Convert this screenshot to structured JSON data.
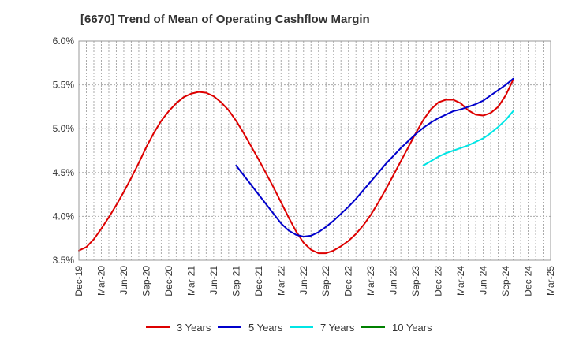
{
  "chart_data": {
    "type": "line",
    "title": "[6670]  Trend of Mean of Operating Cashflow Margin",
    "xlabel": "",
    "ylabel": "",
    "ylim": [
      3.5,
      6.0
    ],
    "y_ticks": [
      3.5,
      4.0,
      4.5,
      5.0,
      5.5,
      6.0
    ],
    "y_tick_labels": [
      "3.5%",
      "4.0%",
      "4.5%",
      "5.0%",
      "5.5%",
      "6.0%"
    ],
    "x_tick_labels": [
      "Dec-19",
      "Mar-20",
      "Jun-20",
      "Sep-20",
      "Dec-20",
      "Mar-21",
      "Jun-21",
      "Sep-21",
      "Dec-21",
      "Mar-22",
      "Jun-22",
      "Sep-22",
      "Dec-22",
      "Mar-23",
      "Jun-23",
      "Sep-23",
      "Dec-23",
      "Mar-24",
      "Jun-24",
      "Sep-24",
      "Dec-24",
      "Mar-25"
    ],
    "grid": true,
    "legend_position": "bottom",
    "series": [
      {
        "name": "3 Years",
        "color": "#dd0000",
        "start_index": 0,
        "values": [
          3.61,
          3.65,
          3.74,
          3.86,
          3.99,
          4.13,
          4.28,
          4.44,
          4.61,
          4.79,
          4.95,
          5.09,
          5.2,
          5.29,
          5.36,
          5.4,
          5.42,
          5.41,
          5.37,
          5.3,
          5.21,
          5.09,
          4.95,
          4.8,
          4.65,
          4.49,
          4.33,
          4.16,
          3.99,
          3.83,
          3.7,
          3.62,
          3.58,
          3.58,
          3.61,
          3.66,
          3.72,
          3.8,
          3.9,
          4.02,
          4.16,
          4.31,
          4.47,
          4.63,
          4.79,
          4.95,
          5.1,
          5.22,
          5.3,
          5.33,
          5.33,
          5.29,
          5.21,
          5.16,
          5.15,
          5.18,
          5.25,
          5.38,
          5.56
        ]
      },
      {
        "name": "5 Years",
        "color": "#0000cc",
        "start_index": 21,
        "values": [
          4.58,
          4.47,
          4.36,
          4.25,
          4.14,
          4.03,
          3.92,
          3.84,
          3.79,
          3.77,
          3.78,
          3.82,
          3.88,
          3.95,
          4.03,
          4.11,
          4.2,
          4.3,
          4.4,
          4.5,
          4.6,
          4.69,
          4.78,
          4.86,
          4.94,
          5.01,
          5.07,
          5.12,
          5.16,
          5.2,
          5.22,
          5.25,
          5.28,
          5.32,
          5.38,
          5.44,
          5.5,
          5.57
        ]
      },
      {
        "name": "7 Years",
        "color": "#00e5e5",
        "start_index": 46,
        "values": [
          4.58,
          4.63,
          4.68,
          4.72,
          4.75,
          4.78,
          4.81,
          4.85,
          4.89,
          4.95,
          5.02,
          5.1,
          5.2
        ]
      },
      {
        "name": "10 Years",
        "color": "#008000",
        "start_index": 0,
        "values": []
      }
    ]
  }
}
